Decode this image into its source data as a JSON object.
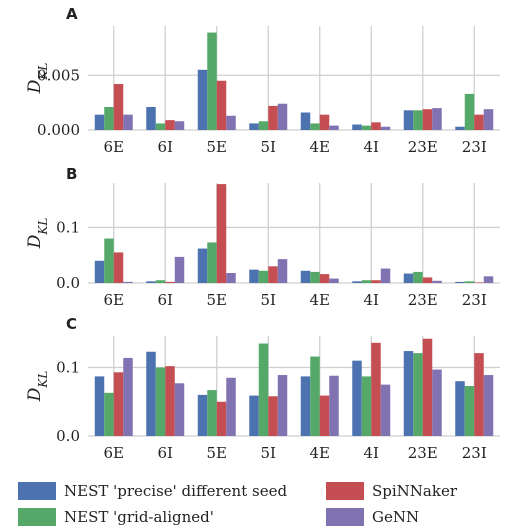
{
  "series_colors": [
    "#4c72b0",
    "#55a868",
    "#c44e52",
    "#8172b2"
  ],
  "legend": [
    {
      "label": "NEST 'precise' different seed"
    },
    {
      "label": "SpiNNaker"
    },
    {
      "label": "NEST 'grid-aligned'"
    },
    {
      "label": "GeNN"
    }
  ],
  "chart_data": [
    {
      "type": "bar",
      "panel": "A",
      "ylabel": "D",
      "ylabel_sub": "KL",
      "categories": [
        "6E",
        "6I",
        "5E",
        "5I",
        "4E",
        "4I",
        "23E",
        "23I"
      ],
      "ylim": [
        0,
        0.0095
      ],
      "yticks": [
        0.0,
        0.005
      ],
      "ytick_labels": [
        "0.000",
        "0.005"
      ],
      "grid": true,
      "series": [
        {
          "name": "NEST 'precise' different seed",
          "values": [
            0.0014,
            0.0021,
            0.0055,
            0.0006,
            0.0016,
            0.0005,
            0.0018,
            0.0003
          ]
        },
        {
          "name": "NEST 'grid-aligned'",
          "values": [
            0.0021,
            0.0006,
            0.0089,
            0.0008,
            0.0006,
            0.0004,
            0.0018,
            0.0033
          ]
        },
        {
          "name": "SpiNNaker",
          "values": [
            0.0042,
            0.0009,
            0.0045,
            0.0022,
            0.0014,
            0.0007,
            0.0019,
            0.0014
          ]
        },
        {
          "name": "GeNN",
          "values": [
            0.0014,
            0.0008,
            0.0013,
            0.0024,
            0.0004,
            0.0003,
            0.002,
            0.0019
          ]
        }
      ]
    },
    {
      "type": "bar",
      "panel": "B",
      "ylabel": "D",
      "ylabel_sub": "KL",
      "categories": [
        "6E",
        "6I",
        "5E",
        "5I",
        "4E",
        "4I",
        "23E",
        "23I"
      ],
      "ylim": [
        0,
        0.18
      ],
      "yticks": [
        0.0,
        0.1
      ],
      "ytick_labels": [
        "0.0",
        "0.1"
      ],
      "grid": true,
      "series": [
        {
          "name": "NEST 'precise' different seed",
          "values": [
            0.04,
            0.003,
            0.062,
            0.024,
            0.022,
            0.003,
            0.017,
            0.002
          ]
        },
        {
          "name": "NEST 'grid-aligned'",
          "values": [
            0.08,
            0.005,
            0.073,
            0.022,
            0.02,
            0.005,
            0.02,
            0.003
          ]
        },
        {
          "name": "SpiNNaker",
          "values": [
            0.055,
            0.002,
            0.178,
            0.03,
            0.016,
            0.005,
            0.01,
            0.001
          ]
        },
        {
          "name": "GeNN",
          "values": [
            0.002,
            0.047,
            0.018,
            0.043,
            0.008,
            0.026,
            0.004,
            0.012
          ]
        }
      ]
    },
    {
      "type": "bar",
      "panel": "C",
      "ylabel": "D",
      "ylabel_sub": "KL",
      "categories": [
        "6E",
        "6I",
        "5E",
        "5I",
        "4E",
        "4I",
        "23E",
        "23I"
      ],
      "ylim": [
        0,
        0.146
      ],
      "yticks": [
        0.0,
        0.1
      ],
      "ytick_labels": [
        "0.0",
        "0.1"
      ],
      "grid": true,
      "series": [
        {
          "name": "NEST 'precise' different seed",
          "values": [
            0.087,
            0.123,
            0.06,
            0.059,
            0.087,
            0.11,
            0.124,
            0.08
          ]
        },
        {
          "name": "NEST 'grid-aligned'",
          "values": [
            0.063,
            0.1,
            0.067,
            0.135,
            0.116,
            0.087,
            0.121,
            0.073
          ]
        },
        {
          "name": "SpiNNaker",
          "values": [
            0.093,
            0.102,
            0.05,
            0.058,
            0.059,
            0.136,
            0.142,
            0.121
          ]
        },
        {
          "name": "GeNN",
          "values": [
            0.114,
            0.077,
            0.085,
            0.089,
            0.088,
            0.075,
            0.097,
            0.089
          ]
        }
      ]
    }
  ]
}
